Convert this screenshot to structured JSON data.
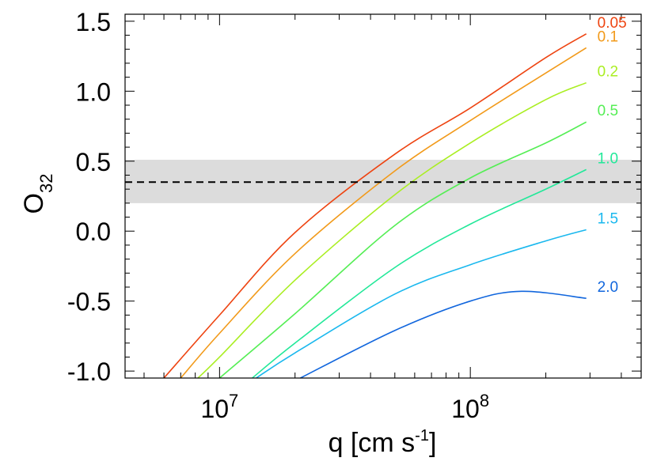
{
  "chart_data": {
    "type": "line",
    "title": "",
    "xlabel": {
      "base": "q [cm s",
      "sup": "-1",
      "close": "]"
    },
    "ylabel": {
      "base": "O",
      "sub": "32"
    },
    "x_scale": "log",
    "xlim": [
      4200000,
      480000000
    ],
    "ylim": [
      -1.05,
      1.55
    ],
    "x_tick_labels": [
      {
        "value": 10000000,
        "base": "10",
        "exp": "7"
      },
      {
        "value": 100000000,
        "base": "10",
        "exp": "8"
      }
    ],
    "y_ticks": [
      {
        "value": 1.5,
        "label": "1.5"
      },
      {
        "value": 1.0,
        "label": "1.0"
      },
      {
        "value": 0.5,
        "label": "0.5"
      },
      {
        "value": 0.0,
        "label": "0.0"
      },
      {
        "value": -0.5,
        "label": "-0.5"
      },
      {
        "value": -1.0,
        "label": "-1.0"
      }
    ],
    "shaded_band": {
      "y0": 0.2,
      "y1": 0.51,
      "color": "#dcdcdc"
    },
    "reference_line": {
      "y": 0.35,
      "style": "dashed",
      "color": "#000000"
    },
    "series": [
      {
        "name": "0.05",
        "color": "#ee4411",
        "points": [
          [
            6000000,
            -1.05
          ],
          [
            10000000,
            -0.6
          ],
          [
            20000000,
            -0.01
          ],
          [
            50000000,
            0.55
          ],
          [
            100000000,
            0.88
          ],
          [
            200000000,
            1.24
          ],
          [
            290000000,
            1.41
          ]
        ]
      },
      {
        "name": "0.1",
        "color": "#f29a1a",
        "points": [
          [
            7000000,
            -1.05
          ],
          [
            10000000,
            -0.73
          ],
          [
            20000000,
            -0.16
          ],
          [
            50000000,
            0.43
          ],
          [
            100000000,
            0.79
          ],
          [
            200000000,
            1.13
          ],
          [
            290000000,
            1.31
          ]
        ]
      },
      {
        "name": "0.2",
        "color": "#aaee22",
        "points": [
          [
            8200000,
            -1.05
          ],
          [
            10000000,
            -0.9
          ],
          [
            20000000,
            -0.35
          ],
          [
            50000000,
            0.26
          ],
          [
            100000000,
            0.63
          ],
          [
            200000000,
            0.94
          ],
          [
            290000000,
            1.06
          ]
        ]
      },
      {
        "name": "0.5",
        "color": "#55ee55",
        "points": [
          [
            10000000,
            -1.05
          ],
          [
            20000000,
            -0.59
          ],
          [
            50000000,
            0.04
          ],
          [
            100000000,
            0.38
          ],
          [
            200000000,
            0.63
          ],
          [
            290000000,
            0.78
          ]
        ]
      },
      {
        "name": "1.0",
        "color": "#22e899",
        "points": [
          [
            13500000,
            -1.05
          ],
          [
            20000000,
            -0.8
          ],
          [
            50000000,
            -0.26
          ],
          [
            100000000,
            0.05
          ],
          [
            200000000,
            0.3
          ],
          [
            290000000,
            0.44
          ]
        ]
      },
      {
        "name": "1.5",
        "color": "#1ab8ee",
        "points": [
          [
            14000000,
            -1.05
          ],
          [
            20000000,
            -0.87
          ],
          [
            50000000,
            -0.45
          ],
          [
            100000000,
            -0.24
          ],
          [
            200000000,
            -0.07
          ],
          [
            290000000,
            0.01
          ]
        ]
      },
      {
        "name": "2.0",
        "color": "#1166dd",
        "points": [
          [
            21000000,
            -1.05
          ],
          [
            50000000,
            -0.71
          ],
          [
            100000000,
            -0.5
          ],
          [
            160000000,
            -0.43
          ],
          [
            290000000,
            -0.48
          ]
        ]
      }
    ]
  }
}
